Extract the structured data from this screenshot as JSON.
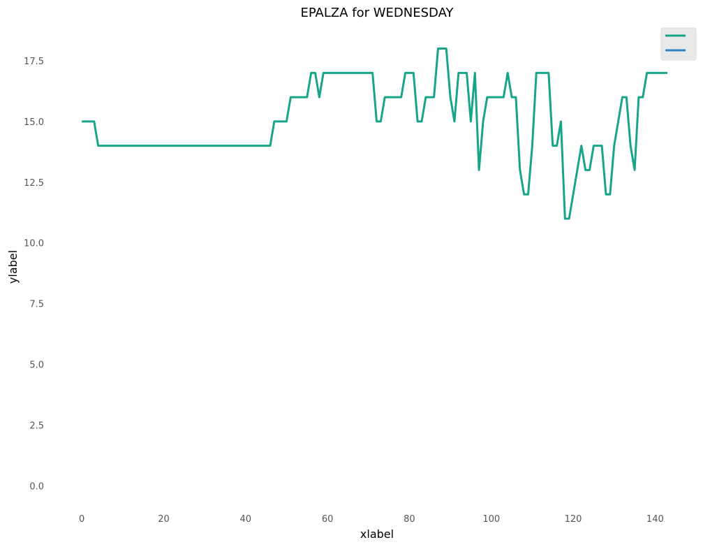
{
  "chart_data": {
    "type": "line",
    "title": "EPALZA for WEDNESDAY",
    "xlabel": "xlabel",
    "ylabel": "ylabel",
    "xlim": [
      -6,
      150
    ],
    "ylim": [
      -0.85,
      18.85
    ],
    "xticks": [
      0,
      20,
      40,
      60,
      80,
      100,
      120,
      140
    ],
    "yticks": [
      0.0,
      2.5,
      5.0,
      7.5,
      10.0,
      12.5,
      15.0,
      17.5
    ],
    "ytick_labels": [
      "0.0",
      "2.5",
      "5.0",
      "7.5",
      "10.0",
      "12.5",
      "15.0",
      "17.5"
    ],
    "grid": false,
    "legend_position": "top-right",
    "series": [
      {
        "color": "#17a589",
        "x": [
          0,
          1,
          2,
          3,
          4,
          5,
          6,
          7,
          8,
          9,
          10,
          11,
          12,
          13,
          14,
          15,
          16,
          17,
          18,
          19,
          20,
          21,
          22,
          23,
          24,
          25,
          26,
          27,
          28,
          29,
          30,
          31,
          32,
          33,
          34,
          35,
          36,
          37,
          38,
          39,
          40,
          41,
          42,
          43,
          44,
          45,
          46,
          47,
          48,
          49,
          50,
          51,
          52,
          53,
          54,
          55,
          56,
          57,
          58,
          59,
          60,
          61,
          62,
          63,
          64,
          65,
          66,
          67,
          68,
          69,
          70,
          71,
          72,
          73,
          74,
          75,
          76,
          77,
          78,
          79,
          80,
          81,
          82,
          83,
          84,
          85,
          86,
          87,
          88,
          89,
          90,
          91,
          92,
          93,
          94,
          95,
          96,
          97,
          98,
          99,
          100,
          101,
          102,
          103,
          104,
          105,
          106,
          107,
          108,
          109,
          110,
          111,
          112,
          113,
          114,
          115,
          116,
          117,
          118,
          119,
          120,
          121,
          122,
          123,
          124,
          125,
          126,
          127,
          128,
          129,
          130,
          131,
          132,
          133,
          134,
          135,
          136,
          137,
          138,
          139,
          140,
          141,
          142,
          143
        ],
        "y": [
          15,
          15,
          15,
          15,
          14,
          14,
          14,
          14,
          14,
          14,
          14,
          14,
          14,
          14,
          14,
          14,
          14,
          14,
          14,
          14,
          14,
          14,
          14,
          14,
          14,
          14,
          14,
          14,
          14,
          14,
          14,
          14,
          14,
          14,
          14,
          14,
          14,
          14,
          14,
          14,
          14,
          14,
          14,
          14,
          14,
          14,
          14,
          15,
          15,
          15,
          15,
          16,
          16,
          16,
          16,
          16,
          17,
          17,
          16,
          17,
          17,
          17,
          17,
          17,
          17,
          17,
          17,
          17,
          17,
          17,
          17,
          17,
          15,
          15,
          16,
          16,
          16,
          16,
          16,
          17,
          17,
          17,
          15,
          15,
          16,
          16,
          16,
          18,
          18,
          18,
          16,
          15,
          17,
          17,
          17,
          15,
          17,
          13,
          15,
          16,
          16,
          16,
          16,
          16,
          17,
          16,
          16,
          13,
          12,
          12,
          14,
          17,
          17,
          17,
          17,
          14,
          14,
          15,
          11,
          11,
          12,
          13,
          14,
          13,
          13,
          14,
          14,
          14,
          12,
          12,
          14,
          15,
          16,
          16,
          14,
          13,
          16,
          16,
          17,
          17,
          17,
          17,
          17,
          17
        ]
      },
      {
        "color": "#2e86c1",
        "x": [],
        "y": []
      }
    ]
  }
}
